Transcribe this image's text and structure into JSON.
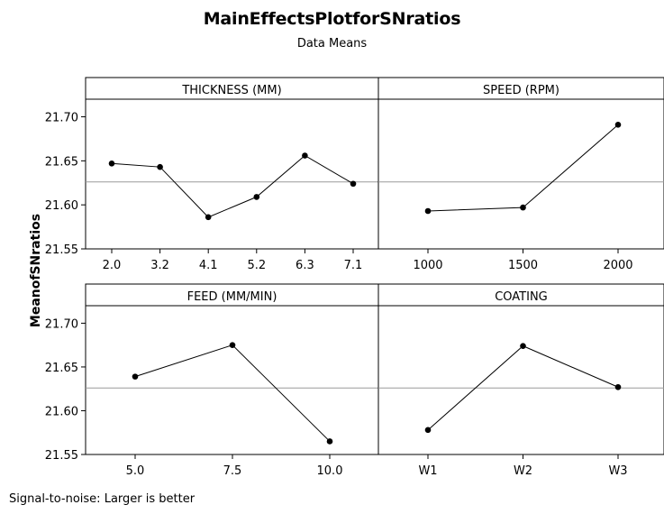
{
  "chart_data": {
    "type": "line",
    "title": "MainEffectsPlotforSNratios",
    "subtitle": "Data Means",
    "ylabel": "MeanofSNratios",
    "footnote": "Signal-to-noise: Larger is better",
    "ylim": [
      21.55,
      21.72
    ],
    "yticks": [
      "21.55",
      "21.60",
      "21.65",
      "21.70"
    ],
    "overall_mean": 21.626,
    "panels": [
      {
        "name": "THICKNESS (MM)",
        "categories": [
          "2.0",
          "3.2",
          "4.1",
          "5.2",
          "6.3",
          "7.1"
        ],
        "values": [
          21.647,
          21.643,
          21.586,
          21.609,
          21.656,
          21.624
        ]
      },
      {
        "name": "SPEED (RPM)",
        "categories": [
          "1000",
          "1500",
          "2000"
        ],
        "values": [
          21.593,
          21.597,
          21.691
        ]
      },
      {
        "name": "FEED (MM/MIN)",
        "categories": [
          "5.0",
          "7.5",
          "10.0"
        ],
        "values": [
          21.639,
          21.675,
          21.565
        ]
      },
      {
        "name": "COATING",
        "categories": [
          "W1",
          "W2",
          "W3"
        ],
        "values": [
          21.578,
          21.674,
          21.627
        ]
      }
    ]
  }
}
